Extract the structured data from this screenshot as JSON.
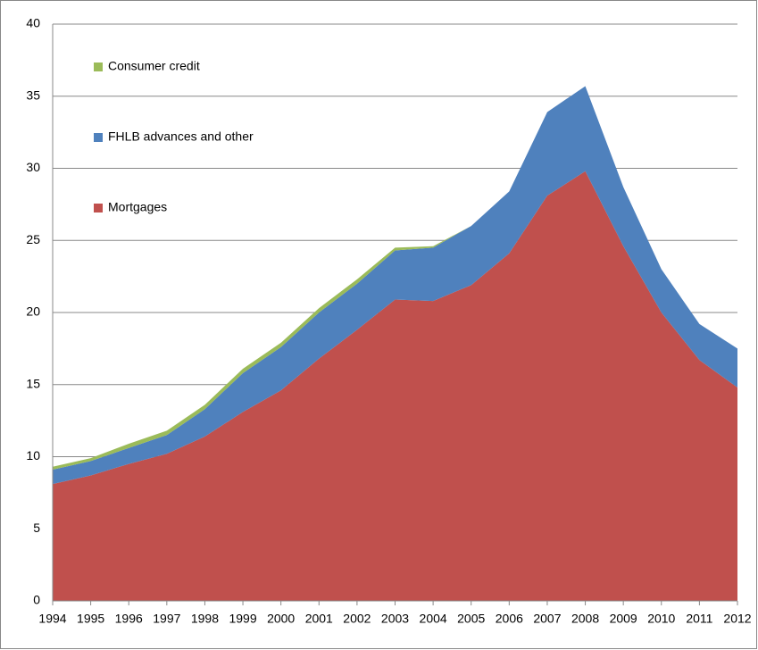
{
  "chart_data": {
    "type": "stacked_area",
    "categories": [
      "1994",
      "1995",
      "1996",
      "1997",
      "1998",
      "1999",
      "2000",
      "2001",
      "2002",
      "2003",
      "2004",
      "2005",
      "2006",
      "2007",
      "2008",
      "2009",
      "2010",
      "2011",
      "2012"
    ],
    "series": [
      {
        "name": "Mortgages",
        "color": "#c0504d",
        "values": [
          8.1,
          8.7,
          9.5,
          10.2,
          11.4,
          13.1,
          14.6,
          16.8,
          18.8,
          20.9,
          20.8,
          21.9,
          24.1,
          28.1,
          29.8,
          24.6,
          20.0,
          16.7,
          14.8
        ]
      },
      {
        "name": "FHLB advances and other",
        "color": "#4f81bd",
        "values": [
          1.0,
          1.0,
          1.1,
          1.3,
          1.9,
          2.7,
          3.0,
          3.2,
          3.2,
          3.4,
          3.7,
          4.1,
          4.3,
          5.8,
          5.9,
          4.1,
          3.0,
          2.5,
          2.7
        ]
      },
      {
        "name": "Consumer credit",
        "color": "#9bbb59",
        "values": [
          0.2,
          0.2,
          0.3,
          0.3,
          0.3,
          0.3,
          0.3,
          0.3,
          0.3,
          0.2,
          0.1,
          0,
          0,
          0,
          0,
          0,
          0,
          0,
          0
        ]
      }
    ],
    "ylim": [
      0,
      40
    ],
    "yticks": [
      0,
      5,
      10,
      15,
      20,
      25,
      30,
      35,
      40
    ],
    "grid": true,
    "legend": "upper left"
  }
}
